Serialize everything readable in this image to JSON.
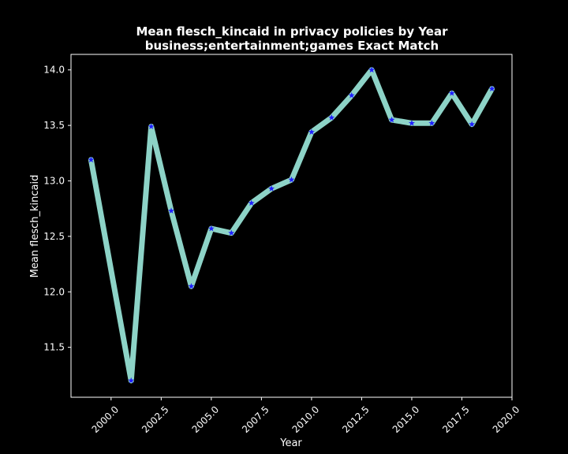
{
  "chart_data": {
    "type": "line",
    "title_line1": "Mean flesch_kincaid in privacy policies by Year",
    "title_line2": "business;entertainment;games Exact Match",
    "xlabel": "Year",
    "ylabel": "Mean flesch_kincaid",
    "xlim": [
      1998.0,
      2020.0
    ],
    "ylim": [
      11.05,
      14.14
    ],
    "x_ticks": [
      2000.0,
      2002.5,
      2005.0,
      2007.5,
      2010.0,
      2012.5,
      2015.0,
      2017.5,
      2020.0
    ],
    "x_tick_labels": [
      "2000.0",
      "2002.5",
      "2005.0",
      "2007.5",
      "2010.0",
      "2012.5",
      "2015.0",
      "2017.5",
      "2020.0"
    ],
    "y_ticks": [
      11.5,
      12.0,
      12.5,
      13.0,
      13.5,
      14.0
    ],
    "y_tick_labels": [
      "11.5",
      "12.0",
      "12.5",
      "13.0",
      "13.5",
      "14.0"
    ],
    "grid": false,
    "series": [
      {
        "x": [
          1999,
          2001,
          2002,
          2003,
          2004,
          2005,
          2006,
          2007,
          2008,
          2009,
          2010,
          2011,
          2012,
          2013,
          2014,
          2015,
          2016,
          2017,
          2018,
          2019
        ],
        "y": [
          13.19,
          11.2,
          13.49,
          12.73,
          12.05,
          12.57,
          12.53,
          12.8,
          12.93,
          13.01,
          13.44,
          13.57,
          13.77,
          14.0,
          13.55,
          13.52,
          13.52,
          13.79,
          13.51,
          13.83
        ]
      }
    ],
    "line_color": "#8dd3c7",
    "marker_color": "#1f1fff",
    "marker": "star",
    "axes_color": "#ffffff",
    "background": "#000000"
  }
}
